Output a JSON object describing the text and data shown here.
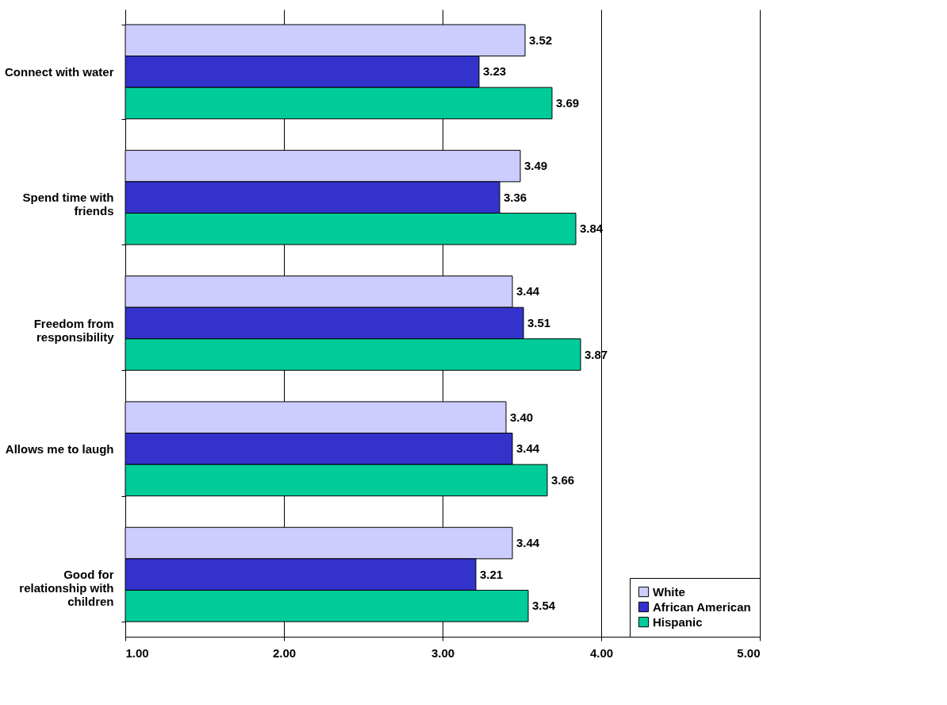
{
  "chart_data": {
    "type": "bar",
    "orientation": "horizontal",
    "categories": [
      "Connect with water",
      "Spend time with friends",
      "Freedom from responsibility",
      "Allows me to laugh",
      "Good for relationship with children"
    ],
    "series": [
      {
        "name": "White",
        "color": "#ccccff",
        "values": [
          3.52,
          3.49,
          3.44,
          3.4,
          3.44
        ]
      },
      {
        "name": "African American",
        "color": "#3333cc",
        "values": [
          3.23,
          3.36,
          3.51,
          3.44,
          3.21
        ]
      },
      {
        "name": "Hispanic",
        "color": "#00cc99",
        "values": [
          3.69,
          3.84,
          3.87,
          3.66,
          3.54
        ]
      }
    ],
    "xlim": [
      1,
      5
    ],
    "xticks": [
      {
        "value": 1,
        "label": "1.00"
      },
      {
        "value": 2,
        "label": "2.00"
      },
      {
        "value": 3,
        "label": "3.00"
      },
      {
        "value": 4,
        "label": "4.00"
      },
      {
        "value": 5,
        "label": "5.00"
      }
    ],
    "value_labels": [
      [
        "3.52",
        "3.49",
        "3.44",
        "3.40",
        "3.44"
      ],
      [
        "3.23",
        "3.36",
        "3.51",
        "3.44",
        "3.21"
      ],
      [
        "3.69",
        "3.84",
        "3.87",
        "3.66",
        "3.54"
      ]
    ],
    "grid": "x",
    "legend": "bottom right"
  }
}
